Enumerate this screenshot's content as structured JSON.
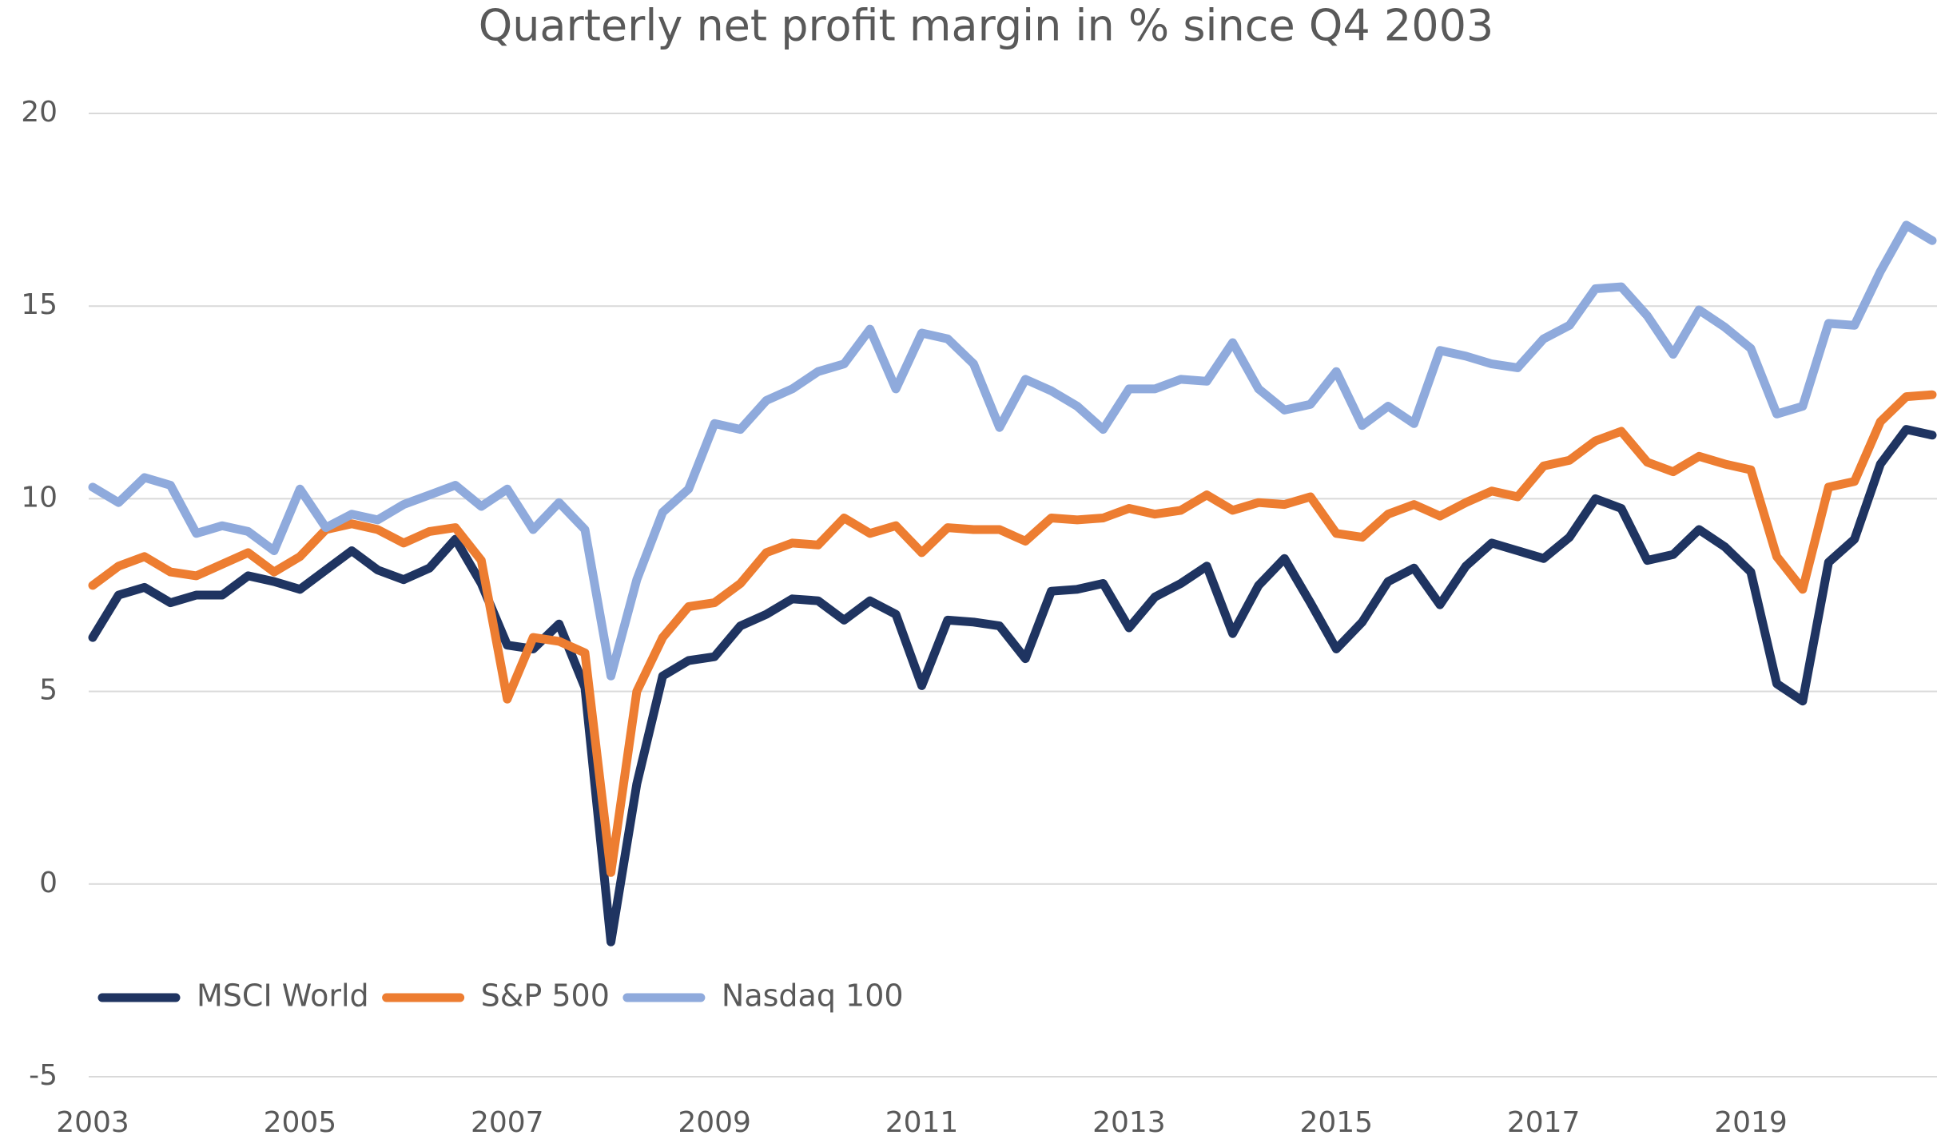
{
  "chart_data": {
    "type": "line",
    "title": "Quarterly net profit margin in % since Q4 2003",
    "categories": [
      "2003",
      null,
      null,
      null,
      null,
      null,
      null,
      null,
      "2005",
      null,
      null,
      null,
      null,
      null,
      null,
      null,
      "2007",
      null,
      null,
      null,
      null,
      null,
      null,
      null,
      "2009",
      null,
      null,
      null,
      null,
      null,
      null,
      null,
      "2011",
      null,
      null,
      null,
      null,
      null,
      null,
      null,
      "2013",
      null,
      null,
      null,
      null,
      null,
      null,
      null,
      "2015",
      null,
      null,
      null,
      null,
      null,
      null,
      null,
      "2017",
      null,
      null,
      null,
      null,
      null,
      null,
      null,
      "2019",
      null,
      null,
      null,
      null,
      null,
      null,
      null
    ],
    "series": [
      {
        "name": "MSCI World",
        "color": "#1f3461",
        "values": [
          6.4,
          7.5,
          7.7,
          7.3,
          7.5,
          7.5,
          8.0,
          7.85,
          7.65,
          8.15,
          8.65,
          8.15,
          7.9,
          8.2,
          8.95,
          7.8,
          6.2,
          6.1,
          6.75,
          5.1,
          -1.5,
          2.6,
          5.4,
          5.8,
          5.9,
          6.7,
          7.0,
          7.4,
          7.35,
          6.85,
          7.35,
          7.0,
          5.15,
          6.85,
          6.8,
          6.7,
          5.85,
          7.6,
          7.65,
          7.8,
          6.65,
          7.45,
          7.8,
          8.25,
          6.5,
          7.75,
          8.45,
          7.3,
          6.1,
          6.8,
          7.85,
          8.2,
          7.25,
          8.25,
          8.85,
          8.65,
          8.45,
          9.0,
          10.0,
          9.75,
          8.4,
          8.55,
          9.2,
          8.75,
          8.1,
          5.2,
          4.75,
          8.35,
          8.95,
          10.9,
          11.8,
          11.65
        ]
      },
      {
        "name": "S&P 500",
        "color": "#ed7d31",
        "values": [
          7.75,
          8.25,
          8.5,
          8.1,
          8.0,
          8.3,
          8.6,
          8.1,
          8.5,
          9.2,
          9.35,
          9.2,
          8.85,
          9.15,
          9.25,
          8.4,
          4.8,
          6.4,
          6.3,
          6.0,
          0.3,
          5.0,
          6.4,
          7.2,
          7.3,
          7.8,
          8.6,
          8.85,
          8.8,
          9.5,
          9.1,
          9.3,
          8.6,
          9.25,
          9.2,
          9.2,
          8.9,
          9.5,
          9.45,
          9.5,
          9.75,
          9.6,
          9.7,
          10.1,
          9.7,
          9.9,
          9.85,
          10.05,
          9.1,
          9.0,
          9.6,
          9.85,
          9.55,
          9.9,
          10.2,
          10.05,
          10.85,
          11.0,
          11.5,
          11.75,
          10.95,
          10.7,
          11.1,
          10.9,
          10.75,
          8.5,
          7.65,
          10.3,
          10.45,
          12.0,
          12.65,
          12.7
        ]
      },
      {
        "name": "Nasdaq 100",
        "color": "#8faadc",
        "values": [
          10.3,
          9.9,
          10.55,
          10.35,
          9.1,
          9.3,
          9.15,
          8.65,
          10.25,
          9.25,
          9.6,
          9.45,
          9.85,
          10.1,
          10.35,
          9.8,
          10.25,
          9.2,
          9.9,
          9.2,
          5.4,
          7.9,
          9.65,
          10.25,
          11.95,
          11.8,
          12.55,
          12.85,
          13.3,
          13.5,
          14.4,
          12.85,
          14.3,
          14.15,
          13.5,
          11.85,
          13.1,
          12.8,
          12.4,
          11.8,
          12.85,
          12.85,
          13.1,
          13.05,
          14.05,
          12.85,
          12.3,
          12.45,
          13.3,
          11.9,
          12.4,
          11.95,
          13.85,
          13.7,
          13.5,
          13.4,
          14.15,
          14.5,
          15.45,
          15.5,
          14.75,
          13.75,
          14.9,
          14.45,
          13.9,
          12.2,
          12.4,
          14.55,
          14.5,
          15.9,
          17.1,
          16.7
        ]
      }
    ],
    "ylim": [
      -5,
      20
    ],
    "yticks": [
      -5,
      0,
      5,
      10,
      15,
      20
    ],
    "grid": true,
    "legend": "bottom-left"
  }
}
